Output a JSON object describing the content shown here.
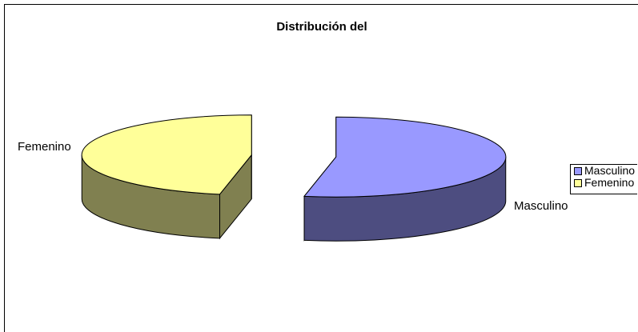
{
  "chart_data": {
    "type": "pie",
    "title": "Distribución del",
    "categories": [
      "Masculino",
      "Femenino"
    ],
    "values": [
      53,
      47
    ],
    "colors": [
      "#9999ff",
      "#ffff99"
    ],
    "side_colors": [
      "#4d4d80",
      "#808050"
    ],
    "legend": "right"
  }
}
